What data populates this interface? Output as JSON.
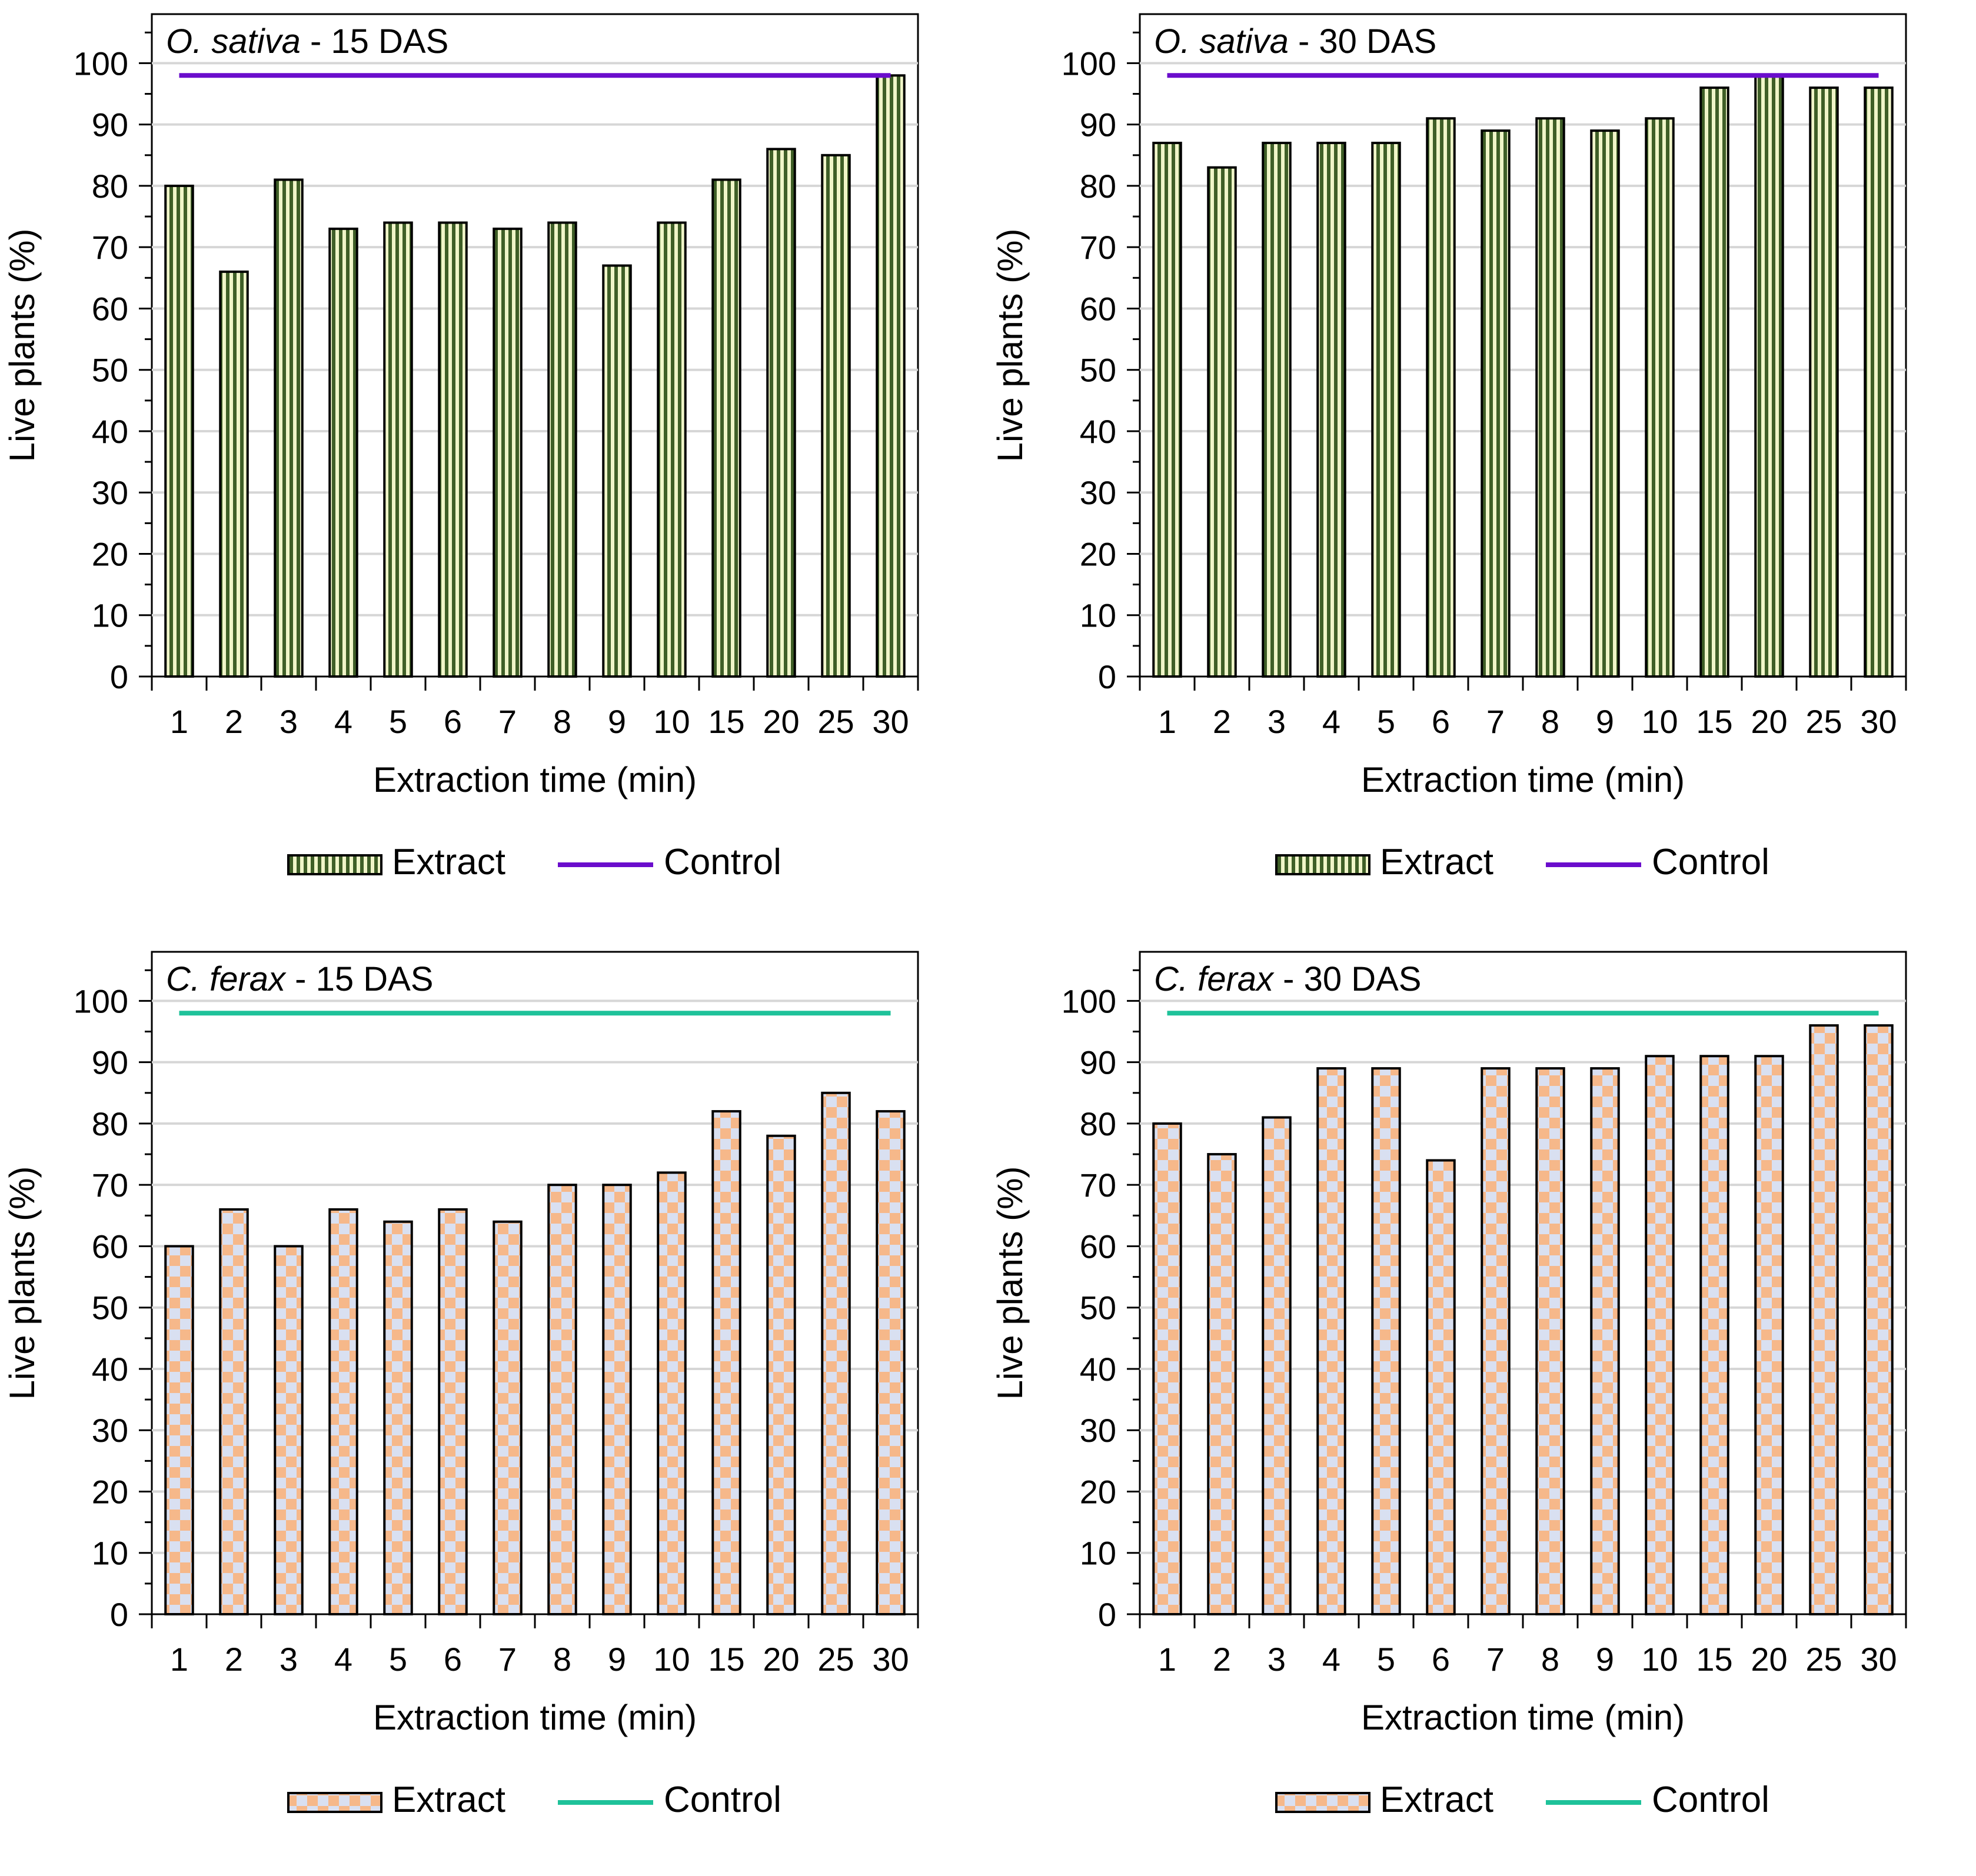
{
  "categories": [
    "1",
    "2",
    "3",
    "4",
    "5",
    "6",
    "7",
    "8",
    "9",
    "10",
    "15",
    "20",
    "25",
    "30"
  ],
  "xlabel": "Extraction time (min)",
  "ylabel": "Live plants (%)",
  "legend": {
    "extract": "Extract",
    "control": "Control"
  },
  "chart_data": [
    {
      "type": "bar",
      "title_species": "O. sativa",
      "title_rest": " - 15 DAS",
      "categories": [
        "1",
        "2",
        "3",
        "4",
        "5",
        "6",
        "7",
        "8",
        "9",
        "10",
        "15",
        "20",
        "25",
        "30"
      ],
      "series": [
        {
          "name": "Extract",
          "values": [
            80,
            66,
            81,
            73,
            74,
            74,
            73,
            74,
            67,
            74,
            81,
            86,
            85,
            98
          ]
        },
        {
          "name": "Control",
          "type": "line",
          "values": [
            98,
            98,
            98,
            98,
            98,
            98,
            98,
            98,
            98,
            98,
            98,
            98,
            98,
            98
          ]
        }
      ],
      "xlabel": "Extraction time (min)",
      "ylabel": "Live plants (%)",
      "ylim": [
        0,
        108
      ],
      "yticks": [
        0,
        10,
        20,
        30,
        40,
        50,
        60,
        70,
        80,
        90,
        100
      ],
      "pattern": "stripes",
      "control_color": "#6a0dcc",
      "legend_position": "bottom"
    },
    {
      "type": "bar",
      "title_species": "O. sativa",
      "title_rest": " - 30 DAS",
      "categories": [
        "1",
        "2",
        "3",
        "4",
        "5",
        "6",
        "7",
        "8",
        "9",
        "10",
        "15",
        "20",
        "25",
        "30"
      ],
      "series": [
        {
          "name": "Extract",
          "values": [
            87,
            83,
            87,
            87,
            87,
            91,
            89,
            91,
            89,
            91,
            96,
            98,
            96,
            96
          ]
        },
        {
          "name": "Control",
          "type": "line",
          "values": [
            98,
            98,
            98,
            98,
            98,
            98,
            98,
            98,
            98,
            98,
            98,
            98,
            98,
            98
          ]
        }
      ],
      "xlabel": "Extraction time (min)",
      "ylabel": "Live plants (%)",
      "ylim": [
        0,
        108
      ],
      "yticks": [
        0,
        10,
        20,
        30,
        40,
        50,
        60,
        70,
        80,
        90,
        100
      ],
      "pattern": "stripes",
      "control_color": "#6a0dcc",
      "legend_position": "bottom"
    },
    {
      "type": "bar",
      "title_species": "C. ferax",
      "title_rest": " - 15 DAS",
      "categories": [
        "1",
        "2",
        "3",
        "4",
        "5",
        "6",
        "7",
        "8",
        "9",
        "10",
        "15",
        "20",
        "25",
        "30"
      ],
      "series": [
        {
          "name": "Extract",
          "values": [
            60,
            66,
            60,
            66,
            64,
            66,
            64,
            70,
            70,
            72,
            82,
            78,
            85,
            82
          ]
        },
        {
          "name": "Control",
          "type": "line",
          "values": [
            98,
            98,
            98,
            98,
            98,
            98,
            98,
            98,
            98,
            98,
            98,
            98,
            98,
            98
          ]
        }
      ],
      "xlabel": "Extraction time (min)",
      "ylabel": "Live plants (%)",
      "ylim": [
        0,
        108
      ],
      "yticks": [
        0,
        10,
        20,
        30,
        40,
        50,
        60,
        70,
        80,
        90,
        100
      ],
      "pattern": "checker",
      "control_color": "#1fc29a",
      "legend_position": "bottom"
    },
    {
      "type": "bar",
      "title_species": "C. ferax",
      "title_rest": " - 30 DAS",
      "categories": [
        "1",
        "2",
        "3",
        "4",
        "5",
        "6",
        "7",
        "8",
        "9",
        "10",
        "15",
        "20",
        "25",
        "30"
      ],
      "series": [
        {
          "name": "Extract",
          "values": [
            80,
            75,
            81,
            89,
            89,
            74,
            89,
            89,
            89,
            91,
            91,
            91,
            96,
            96
          ]
        },
        {
          "name": "Control",
          "type": "line",
          "values": [
            98,
            98,
            98,
            98,
            98,
            98,
            98,
            98,
            98,
            98,
            98,
            98,
            98,
            98
          ]
        }
      ],
      "xlabel": "Extraction time (min)",
      "ylabel": "Live plants (%)",
      "ylim": [
        0,
        108
      ],
      "yticks": [
        0,
        10,
        20,
        30,
        40,
        50,
        60,
        70,
        80,
        90,
        100
      ],
      "pattern": "checker",
      "control_color": "#1fc29a",
      "legend_position": "bottom"
    }
  ]
}
